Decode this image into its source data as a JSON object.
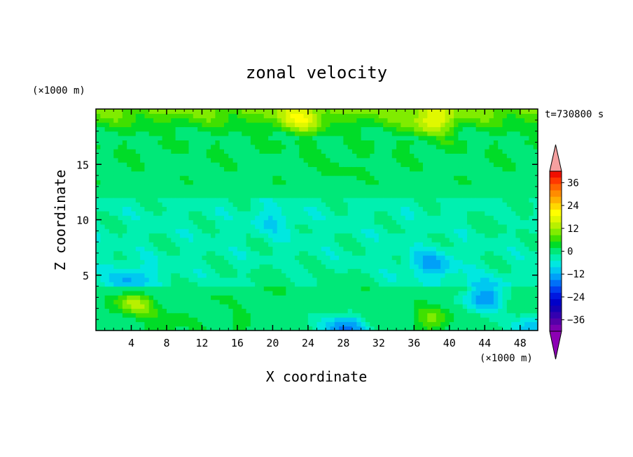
{
  "chart_data": {
    "type": "heatmap",
    "title": "zonal velocity",
    "xlabel": "X coordinate",
    "ylabel": "Z coordinate",
    "x_unit": "(×1000 m)",
    "y_unit": "(×1000 m)",
    "time_label": "t=730800 s",
    "xlim": [
      0,
      50
    ],
    "ylim": [
      0,
      20
    ],
    "x_ticks": [
      4,
      8,
      12,
      16,
      20,
      24,
      28,
      32,
      36,
      40,
      44,
      48
    ],
    "y_ticks": [
      5,
      10,
      15
    ],
    "colorbar": {
      "levels": [
        -42,
        -39,
        -36,
        -33,
        -30,
        -27,
        -24,
        -21,
        -18,
        -15,
        -12,
        -9,
        -6,
        -3,
        0,
        3,
        6,
        9,
        12,
        15,
        18,
        21,
        24,
        27,
        30,
        33,
        36,
        39,
        42
      ],
      "tick_labels": [
        "36",
        "24",
        "12",
        "0",
        "-12",
        "-24",
        "-36"
      ],
      "tick_values": [
        36,
        24,
        12,
        0,
        -12,
        -24,
        -36
      ],
      "colors": [
        "#7a00b0",
        "#5500a8",
        "#3300b0",
        "#1500b4",
        "#0000c8",
        "#0018e0",
        "#0040f0",
        "#0070f8",
        "#00a0f8",
        "#00c8f0",
        "#00e8e0",
        "#00f0b0",
        "#00e878",
        "#00dc28",
        "#40e000",
        "#80ec00",
        "#b8f000",
        "#e0f800",
        "#ffff00",
        "#ffd800",
        "#ffb000",
        "#ff8c00",
        "#ff6400",
        "#ff3800",
        "#f01000"
      ],
      "over_color": "#f5a0a0",
      "under_color": "#8c00b4"
    },
    "grid": false,
    "features": [
      {
        "x": 44,
        "z": 3,
        "u": -15
      },
      {
        "x": 4,
        "z": 2.5,
        "u": 13
      },
      {
        "x": 4,
        "z": 4.5,
        "u": -9
      },
      {
        "x": 38,
        "z": 1,
        "u": 9
      },
      {
        "x": 28,
        "z": 0.2,
        "u": -16
      },
      {
        "x": 49,
        "z": 0.3,
        "u": -10
      },
      {
        "x": 20,
        "z": 4.5,
        "u": 4
      },
      {
        "x": 28,
        "z": 4,
        "u": 3
      },
      {
        "x": 13,
        "z": 3,
        "u": 3
      },
      {
        "x": 8,
        "z": 0.5,
        "u": 6
      },
      {
        "x": 16,
        "z": 0.5,
        "u": 4
      },
      {
        "x": 38,
        "z": 6,
        "u": -9
      },
      {
        "x": 23,
        "z": 19,
        "u": 10
      },
      {
        "x": 38,
        "z": 18.8,
        "u": 11
      },
      {
        "x": 20,
        "z": 10,
        "u": -5
      },
      {
        "x": 46,
        "z": 10,
        "u": 2
      },
      {
        "x": 28,
        "z": 14.5,
        "u": 2
      }
    ]
  }
}
